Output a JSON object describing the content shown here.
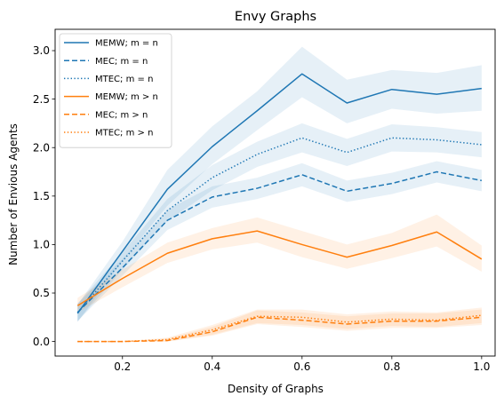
{
  "chart_data": {
    "type": "line",
    "title": "Envy Graphs",
    "xlabel": "Density of Graphs",
    "ylabel": "Number of Envious Agents",
    "xlim": [
      0.05,
      1.03
    ],
    "ylim": [
      -0.15,
      3.22
    ],
    "xticks": [
      0.2,
      0.4,
      0.6,
      0.8,
      1.0
    ],
    "xtick_labels": [
      "0.2",
      "0.4",
      "0.6",
      "0.8",
      "1.0"
    ],
    "yticks": [
      0.0,
      0.5,
      1.0,
      1.5,
      2.0,
      2.5,
      3.0
    ],
    "ytick_labels": [
      "0.0",
      "0.5",
      "1.0",
      "1.5",
      "2.0",
      "2.5",
      "3.0"
    ],
    "grid": false,
    "legend_position": "upper-left",
    "x": [
      0.1,
      0.2,
      0.3,
      0.4,
      0.5,
      0.6,
      0.7,
      0.8,
      0.9,
      1.0
    ],
    "series": [
      {
        "name": "MEMW; m = n",
        "color": "#1f77b4",
        "style": "solid",
        "values": [
          0.29,
          0.93,
          1.57,
          2.01,
          2.38,
          2.76,
          2.46,
          2.6,
          2.55,
          2.61
        ],
        "lower": [
          0.2,
          0.83,
          1.4,
          1.83,
          2.18,
          2.52,
          2.25,
          2.4,
          2.35,
          2.38
        ],
        "upper": [
          0.38,
          1.03,
          1.77,
          2.22,
          2.58,
          3.04,
          2.7,
          2.8,
          2.77,
          2.85
        ]
      },
      {
        "name": "MEC; m = n",
        "color": "#1f77b4",
        "style": "dashed",
        "values": [
          0.3,
          0.76,
          1.25,
          1.49,
          1.58,
          1.72,
          1.55,
          1.63,
          1.75,
          1.66
        ],
        "lower": [
          0.21,
          0.68,
          1.15,
          1.38,
          1.47,
          1.6,
          1.44,
          1.52,
          1.64,
          1.55
        ],
        "upper": [
          0.39,
          0.85,
          1.36,
          1.6,
          1.69,
          1.84,
          1.66,
          1.74,
          1.86,
          1.77
        ]
      },
      {
        "name": "MTEC; m = n",
        "color": "#1f77b4",
        "style": "dotted",
        "values": [
          0.3,
          0.83,
          1.35,
          1.69,
          1.93,
          2.1,
          1.95,
          2.1,
          2.08,
          2.03
        ],
        "lower": [
          0.21,
          0.74,
          1.24,
          1.56,
          1.8,
          1.95,
          1.81,
          1.96,
          1.95,
          1.9
        ],
        "upper": [
          0.39,
          0.92,
          1.47,
          1.82,
          2.06,
          2.25,
          2.09,
          2.24,
          2.21,
          2.16
        ]
      },
      {
        "name": "MEMW; m > n",
        "color": "#ff7f0e",
        "style": "solid",
        "values": [
          0.37,
          0.65,
          0.91,
          1.06,
          1.14,
          1.0,
          0.87,
          0.99,
          1.13,
          0.85
        ],
        "lower": [
          0.3,
          0.56,
          0.81,
          0.95,
          1.02,
          0.87,
          0.75,
          0.86,
          0.98,
          0.72
        ],
        "upper": [
          0.45,
          0.74,
          1.02,
          1.17,
          1.28,
          1.14,
          1.0,
          1.12,
          1.31,
          0.99
        ]
      },
      {
        "name": "MEC; m > n",
        "color": "#ff7f0e",
        "style": "dashed",
        "values": [
          0.0,
          0.0,
          0.01,
          0.1,
          0.25,
          0.22,
          0.18,
          0.21,
          0.21,
          0.25
        ],
        "lower": [
          0.0,
          0.0,
          0.0,
          0.06,
          0.18,
          0.15,
          0.11,
          0.14,
          0.14,
          0.17
        ],
        "upper": [
          0.0,
          0.0,
          0.03,
          0.15,
          0.32,
          0.3,
          0.26,
          0.29,
          0.29,
          0.33
        ]
      },
      {
        "name": "MTEC; m > n",
        "color": "#ff7f0e",
        "style": "dotted",
        "values": [
          0.0,
          0.0,
          0.02,
          0.12,
          0.26,
          0.25,
          0.2,
          0.23,
          0.22,
          0.27
        ],
        "lower": [
          0.0,
          0.0,
          0.0,
          0.07,
          0.19,
          0.17,
          0.13,
          0.16,
          0.15,
          0.19
        ],
        "upper": [
          0.0,
          0.0,
          0.04,
          0.17,
          0.33,
          0.33,
          0.28,
          0.31,
          0.3,
          0.35
        ]
      }
    ]
  }
}
